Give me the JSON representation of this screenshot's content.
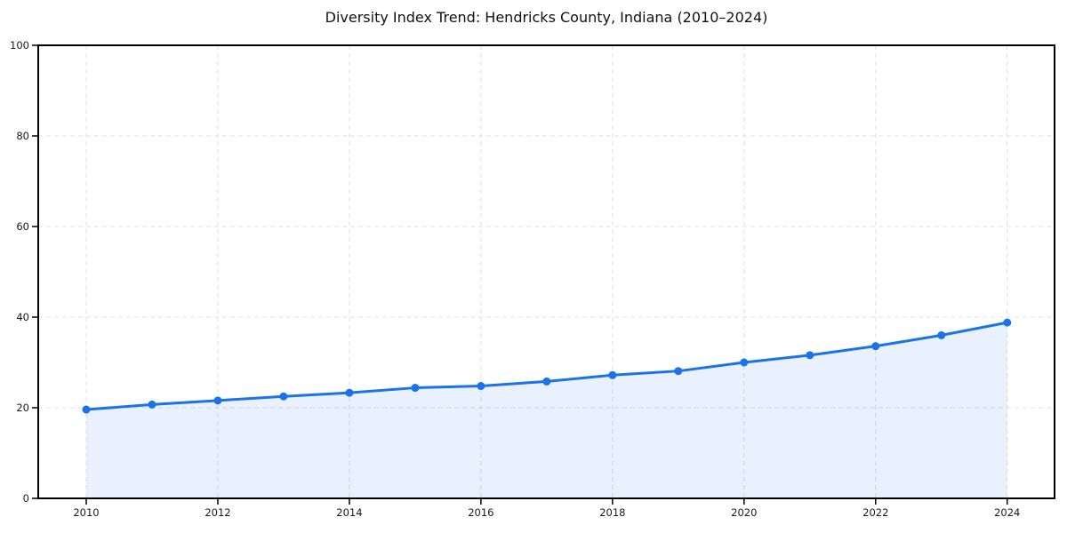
{
  "chart_data": {
    "type": "line",
    "title": "Diversity Index Trend: Hendricks County, Indiana (2010–2024)",
    "x": [
      2010,
      2011,
      2012,
      2013,
      2014,
      2015,
      2016,
      2017,
      2018,
      2019,
      2020,
      2021,
      2022,
      2023,
      2024
    ],
    "series": [
      {
        "name": "Diversity Index",
        "values": [
          19.6,
          20.7,
          21.6,
          22.5,
          23.3,
          24.4,
          24.8,
          25.8,
          27.2,
          28.1,
          30.0,
          31.6,
          33.6,
          36.0,
          38.8
        ]
      }
    ],
    "xticks": [
      2010,
      2012,
      2014,
      2016,
      2018,
      2020,
      2022,
      2024
    ],
    "yticks": [
      0,
      20,
      40,
      60,
      80,
      100
    ],
    "xlim": [
      2009.27,
      2024.72
    ],
    "ylim": [
      0,
      100
    ],
    "xlabel": "",
    "ylabel": "",
    "grid": true,
    "legend": "none",
    "marker": "circle",
    "colors": {
      "line": "#1a73e8",
      "marker": "#1a73e8",
      "fill": "rgba(26, 115, 232, 0.10)",
      "grid": "#e0e0e0",
      "axis": "#000000",
      "tick_text": "#1a1a1a",
      "background": "#ffffff"
    }
  }
}
